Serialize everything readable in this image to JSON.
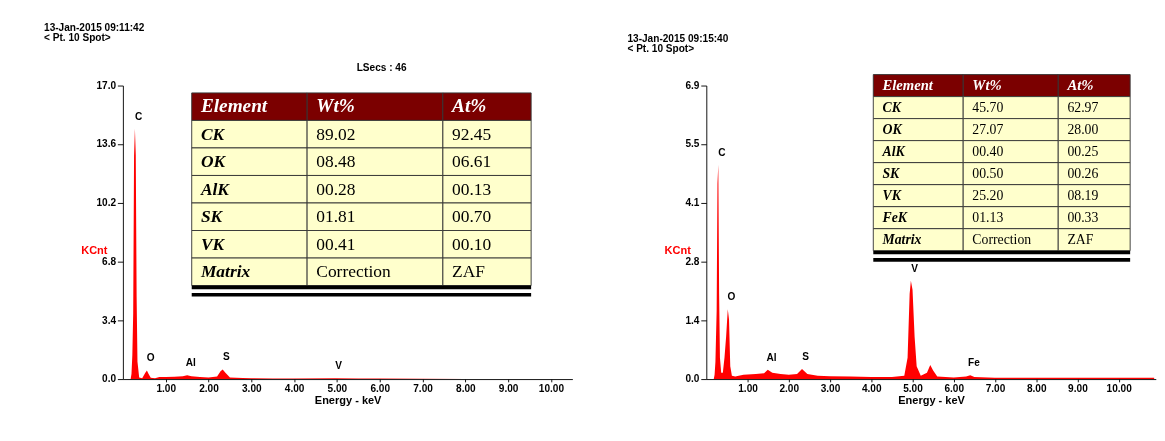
{
  "chart_data": [
    {
      "type": "area",
      "title": "13-Jan-2015 09:11:42",
      "subtitle": "< Pt. 10 Spot>",
      "xlabel": "Energy - keV",
      "ylabel": "KCnt",
      "x": [
        0.18,
        0.2,
        0.22,
        0.24,
        0.26,
        0.28,
        0.3,
        0.32,
        0.34,
        0.38,
        0.45,
        0.52,
        0.56,
        0.6,
        0.65,
        0.75,
        0.85,
        1.0,
        1.2,
        1.4,
        1.5,
        1.6,
        1.8,
        2.0,
        2.2,
        2.28,
        2.33,
        2.4,
        2.5,
        2.8,
        3.0,
        3.5,
        4.0,
        4.95,
        5.5,
        6.0,
        7.0,
        8.0,
        9.0,
        10.0,
        10.49
      ],
      "series": [
        {
          "color": "#ff0000",
          "values": [
            0,
            0.3,
            1.4,
            3.8,
            12.9,
            14.5,
            13.0,
            4.8,
            1.0,
            0.1,
            0.05,
            0.35,
            0.5,
            0.3,
            0.08,
            0.05,
            0.12,
            0.12,
            0.13,
            0.17,
            0.22,
            0.16,
            0.12,
            0.1,
            0.15,
            0.45,
            0.55,
            0.35,
            0.1,
            0.07,
            0.05,
            0.04,
            0.03,
            0.05,
            0.04,
            0.03,
            0.02,
            0.01,
            0,
            0,
            0
          ]
        }
      ],
      "xlim": [
        0,
        10.5
      ],
      "xticks": [
        {
          "value": 1,
          "label": "1.00"
        },
        {
          "value": 2,
          "label": "2.00"
        },
        {
          "value": 3,
          "label": "3.00"
        },
        {
          "value": 4,
          "label": "4.00"
        },
        {
          "value": 5,
          "label": "5.00"
        },
        {
          "value": 6,
          "label": "6.00"
        },
        {
          "value": 7,
          "label": "7.00"
        },
        {
          "value": 8,
          "label": "8.00"
        },
        {
          "value": 9,
          "label": "9.00"
        },
        {
          "value": 10,
          "label": "10.00"
        }
      ],
      "ylim": [
        0,
        17
      ],
      "yticks": [
        {
          "value": 0,
          "label": "0.0"
        },
        {
          "value": 3.4,
          "label": "3.4"
        },
        {
          "value": 6.8,
          "label": "6.8"
        },
        {
          "value": 10.2,
          "label": "10.2"
        },
        {
          "value": 13.6,
          "label": "13.6"
        },
        {
          "value": 17,
          "label": "17.0"
        }
      ],
      "grid": false,
      "annotations": [
        "LSecs : 46",
        "Element",
        "Wt%",
        "At%",
        "CK",
        "89.02",
        "92.45",
        "OK",
        "08.48",
        "06.61",
        "AlK",
        "00.28",
        "00.13",
        "SK",
        "01.81",
        "00.70",
        "VK",
        "00.41",
        "00.10",
        "Matrix",
        "Correction",
        "ZAF",
        {
          "text": "C",
          "x": 0.28,
          "y": 14.5
        },
        {
          "text": "O",
          "x": 0.56,
          "y": 0.5
        },
        {
          "text": "Al",
          "x": 1.5,
          "y": 0.22
        },
        {
          "text": "S",
          "x": 2.33,
          "y": 0.55
        },
        {
          "text": "V",
          "x": 4.95,
          "y": 0.05
        }
      ]
    },
    {
      "type": "area",
      "title": "13-Jan-2015 09:15:40",
      "subtitle": "< Pt. 10 Spot>",
      "xlabel": "Energy - keV",
      "ylabel": "KCnt",
      "x": [
        0.18,
        0.2,
        0.22,
        0.25,
        0.27,
        0.29,
        0.31,
        0.33,
        0.36,
        0.4,
        0.44,
        0.48,
        0.52,
        0.55,
        0.58,
        0.62,
        0.7,
        0.9,
        1.2,
        1.4,
        1.49,
        1.6,
        1.8,
        2.0,
        2.2,
        2.32,
        2.45,
        2.7,
        3.0,
        3.5,
        4.0,
        4.5,
        4.8,
        4.88,
        4.93,
        4.96,
        5.0,
        5.05,
        5.1,
        5.2,
        5.35,
        5.43,
        5.5,
        5.6,
        6.0,
        6.3,
        6.4,
        6.5,
        7.0,
        8.0,
        9.0,
        10.0,
        10.86
      ],
      "series": [
        {
          "color": "#ff0000",
          "values": [
            0,
            0.1,
            0.4,
            1.6,
            4.6,
            5.04,
            2.0,
            0.5,
            0.15,
            0.15,
            0.5,
            1.0,
            1.64,
            1.4,
            0.3,
            0.08,
            0.06,
            0.1,
            0.12,
            0.14,
            0.22,
            0.15,
            0.12,
            0.1,
            0.12,
            0.24,
            0.12,
            0.08,
            0.07,
            0.06,
            0.05,
            0.05,
            0.08,
            0.5,
            2.0,
            2.31,
            2.1,
            1.0,
            0.3,
            0.08,
            0.15,
            0.33,
            0.2,
            0.06,
            0.04,
            0.06,
            0.09,
            0.05,
            0.03,
            0.03,
            0.03,
            0.03,
            0.03
          ]
        }
      ],
      "xlim": [
        0,
        10.9
      ],
      "xticks": [
        {
          "value": 1,
          "label": "1.00"
        },
        {
          "value": 2,
          "label": "2.00"
        },
        {
          "value": 3,
          "label": "3.00"
        },
        {
          "value": 4,
          "label": "4.00"
        },
        {
          "value": 5,
          "label": "5.00"
        },
        {
          "value": 6,
          "label": "6.00"
        },
        {
          "value": 7,
          "label": "7.00"
        },
        {
          "value": 8,
          "label": "8.00"
        },
        {
          "value": 9,
          "label": "9.00"
        },
        {
          "value": 10,
          "label": "10.00"
        }
      ],
      "ylim": [
        0,
        6.9
      ],
      "yticks": [
        {
          "value": 0,
          "label": "0.0"
        },
        {
          "value": 1.38,
          "label": "1.4"
        },
        {
          "value": 2.76,
          "label": "2.8"
        },
        {
          "value": 4.14,
          "label": "4.1"
        },
        {
          "value": 5.52,
          "label": "5.5"
        },
        {
          "value": 6.9,
          "label": "6.9"
        }
      ],
      "grid": false,
      "annotations": [
        "Element",
        "Wt%",
        "At%",
        "CK",
        "45.70",
        "62.97",
        "OK",
        "27.07",
        "28.00",
        "AlK",
        "00.40",
        "00.25",
        "SK",
        "00.50",
        "00.26",
        "VK",
        "25.20",
        "08.19",
        "FeK",
        "01.13",
        "00.33",
        "Matrix",
        "Correction",
        "ZAF",
        {
          "text": "C",
          "x": 0.29,
          "y": 5.04
        },
        {
          "text": "O",
          "x": 0.52,
          "y": 1.64
        },
        {
          "text": "Al",
          "x": 1.49,
          "y": 0.22
        },
        {
          "text": "S",
          "x": 2.32,
          "y": 0.24
        },
        {
          "text": "V",
          "x": 4.96,
          "y": 2.31
        },
        {
          "text": "Fe",
          "x": 6.4,
          "y": 0.09
        }
      ]
    }
  ]
}
